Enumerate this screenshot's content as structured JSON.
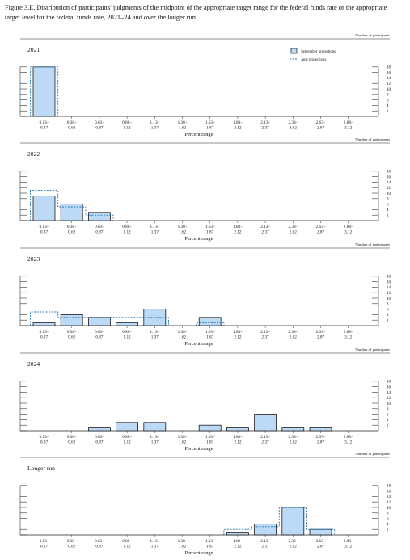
{
  "title": "Figure 3.E. Distribution of participants' judgments of the midpoint of the appropriate target range for the federal funds rate or the appropriate target level for the federal funds rate, 2021–24 and over the longer run",
  "legend": {
    "september": "September projections",
    "june": "June projections"
  },
  "colors": {
    "september_fill": "#bcd9f5",
    "bar_stroke": "#1a1a1a",
    "june_dash": "#1e73b4"
  },
  "chart_data": [
    {
      "type": "bar",
      "panel_label": "2021",
      "show_legend": true,
      "categories": [
        "0.13–0.37",
        "0.38–0.62",
        "0.63–0.87",
        "0.88–1.12",
        "1.13–1.37",
        "1.38–1.62",
        "1.63–1.87",
        "1.88–2.12",
        "2.13–2.37",
        "2.38–2.62",
        "2.63–2.87",
        "2.88–3.12"
      ],
      "series": [
        {
          "name": "September projections",
          "values": [
            18,
            0,
            0,
            0,
            0,
            0,
            0,
            0,
            0,
            0,
            0,
            0
          ]
        },
        {
          "name": "June projections",
          "values": [
            18,
            0,
            0,
            0,
            0,
            0,
            0,
            0,
            0,
            0,
            0,
            0
          ]
        }
      ],
      "xlabel": "Percent range",
      "ylabel": "Number of participants",
      "yticks": [
        2,
        4,
        6,
        8,
        10,
        12,
        14,
        16,
        18
      ],
      "ylim": [
        0,
        18
      ]
    },
    {
      "type": "bar",
      "panel_label": "2022",
      "show_legend": false,
      "categories": [
        "0.13–0.37",
        "0.38–0.62",
        "0.63–0.87",
        "0.88–1.12",
        "1.13–1.37",
        "1.38–1.62",
        "1.63–1.87",
        "1.88–2.12",
        "2.13–2.37",
        "2.38–2.62",
        "2.63–2.87",
        "2.88–3.12"
      ],
      "series": [
        {
          "name": "September projections",
          "values": [
            9,
            6,
            3,
            0,
            0,
            0,
            0,
            0,
            0,
            0,
            0,
            0
          ]
        },
        {
          "name": "June projections",
          "values": [
            11,
            5,
            2,
            0,
            0,
            0,
            0,
            0,
            0,
            0,
            0,
            0
          ]
        }
      ],
      "xlabel": "Percent range",
      "ylabel": "Number of participants",
      "yticks": [
        2,
        4,
        6,
        8,
        10,
        12,
        14,
        16,
        18
      ],
      "ylim": [
        0,
        18
      ]
    },
    {
      "type": "bar",
      "panel_label": "2023",
      "show_legend": false,
      "categories": [
        "0.13–0.37",
        "0.38–0.62",
        "0.63–0.87",
        "0.88–1.12",
        "1.13–1.37",
        "1.38–1.62",
        "1.63–1.87",
        "1.88–2.12",
        "2.13–2.37",
        "2.38–2.62",
        "2.63–2.87",
        "2.88–3.12"
      ],
      "series": [
        {
          "name": "September projections",
          "values": [
            1,
            4,
            3,
            1,
            6,
            0,
            3,
            0,
            0,
            0,
            0,
            0
          ]
        },
        {
          "name": "June projections",
          "values": [
            5,
            3,
            3,
            3,
            3,
            0,
            1,
            0,
            0,
            0,
            0,
            0
          ]
        }
      ],
      "xlabel": "Percent range",
      "ylabel": "Number of participants",
      "yticks": [
        2,
        4,
        6,
        8,
        10,
        12,
        14,
        16,
        18
      ],
      "ylim": [
        0,
        18
      ]
    },
    {
      "type": "bar",
      "panel_label": "2024",
      "show_legend": false,
      "categories": [
        "0.13–0.37",
        "0.38–0.62",
        "0.63–0.87",
        "0.88–1.12",
        "1.13–1.37",
        "1.38–1.62",
        "1.63–1.87",
        "1.88–2.12",
        "2.13–2.37",
        "2.38–2.62",
        "2.63–2.87",
        "2.88–3.12"
      ],
      "series": [
        {
          "name": "September projections",
          "values": [
            0,
            0,
            1,
            3,
            3,
            0,
            2,
            1,
            6,
            1,
            1,
            0
          ]
        }
      ],
      "xlabel": "Percent range",
      "ylabel": "Number of participants",
      "yticks": [
        2,
        4,
        6,
        8,
        10,
        12,
        14,
        16,
        18
      ],
      "ylim": [
        0,
        18
      ]
    },
    {
      "type": "bar",
      "panel_label": "Longer run",
      "show_legend": false,
      "categories": [
        "0.13–0.37",
        "0.38–0.62",
        "0.63–0.87",
        "0.88–1.12",
        "1.13–1.37",
        "1.38–1.62",
        "1.63–1.87",
        "1.88–2.12",
        "2.13–2.37",
        "2.38–2.62",
        "2.63–2.87",
        "2.88–3.12"
      ],
      "series": [
        {
          "name": "September projections",
          "values": [
            0,
            0,
            0,
            0,
            0,
            0,
            0,
            1,
            4,
            10,
            2,
            0
          ]
        },
        {
          "name": "June projections",
          "values": [
            0,
            0,
            0,
            0,
            0,
            0,
            0,
            2,
            3,
            10,
            2,
            0
          ]
        }
      ],
      "xlabel": "Percent range",
      "ylabel": "Number of participants",
      "yticks": [
        2,
        4,
        6,
        8,
        10,
        12,
        14,
        16,
        18
      ],
      "ylim": [
        0,
        18
      ]
    }
  ]
}
